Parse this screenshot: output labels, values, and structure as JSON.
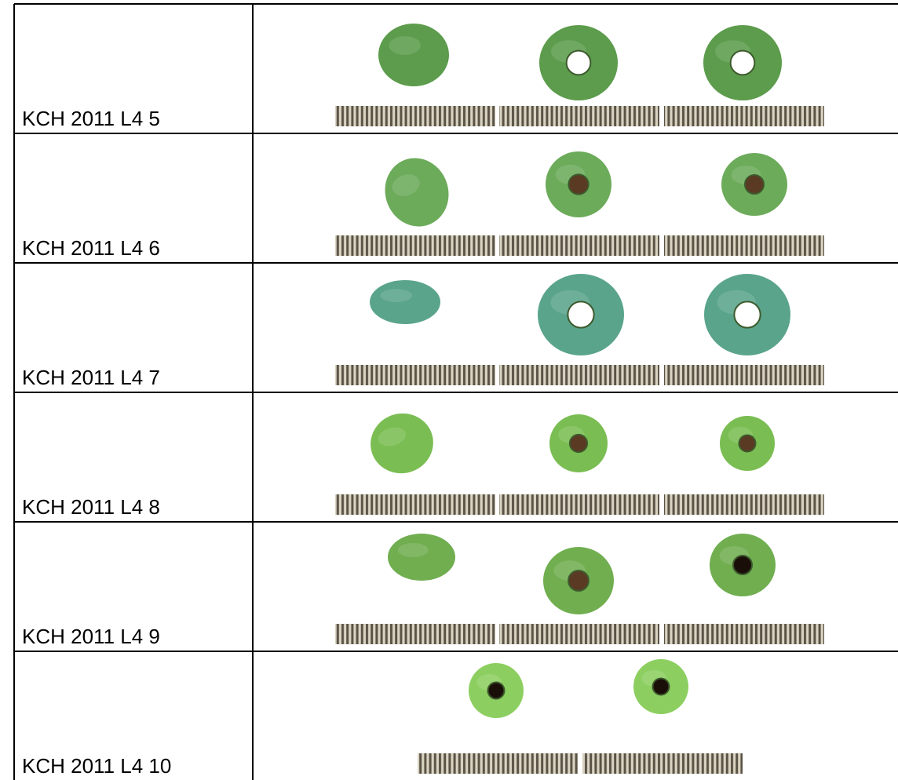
{
  "table": {
    "rows": [
      "KCH 2011 L4 5",
      "KCH 2011 L4 6",
      "KCH 2011 L4 7",
      "KCH 2011 L4 8",
      "KCH 2011 L4 9",
      "KCH 2011 L4 10"
    ]
  }
}
